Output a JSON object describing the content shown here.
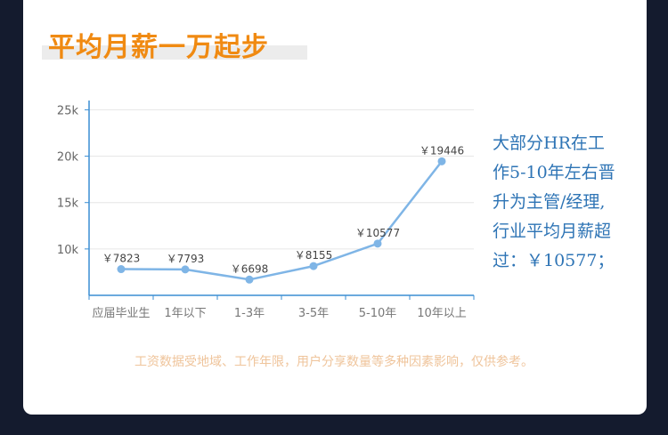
{
  "header": {
    "title": "平均月薪一万起步"
  },
  "chart_data": {
    "type": "line",
    "categories": [
      "应届毕业生",
      "1年以下",
      "1-3年",
      "3-5年",
      "5-10年",
      "10年以上"
    ],
    "values": [
      7823,
      7793,
      6698,
      8155,
      10577,
      19446
    ],
    "data_labels": [
      "￥7823",
      "￥7793",
      "￥6698",
      "￥8155",
      "￥10577",
      "￥19446"
    ],
    "yticks": [
      10000,
      15000,
      20000,
      25000
    ],
    "ytick_labels": [
      "10k",
      "15k",
      "20k",
      "25k"
    ],
    "ylim": [
      5000,
      26000
    ],
    "grid": true,
    "line_color": "#7fb5e6",
    "axis_color": "#3a8ed3"
  },
  "side_text": {
    "lines": [
      "大部分HR在工",
      "作5-10年左右晋",
      "升为主管/经理,",
      "行业平均月薪超",
      "过：￥10577；"
    ]
  },
  "footnote": "工资数据受地域、工作年限，用户分享数量等多种因素影响，仅供参考。",
  "colors": {
    "title": "#f08a12",
    "side_text": "#2e74b5",
    "footnote": "#efc49b",
    "background": "#141b2e"
  }
}
